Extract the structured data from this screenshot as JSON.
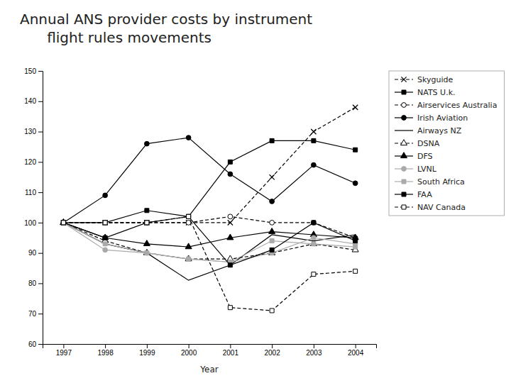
{
  "chart_data": {
    "type": "line",
    "title": [
      "Annual ANS provider costs by instrument",
      "      flight rules movements"
    ],
    "xlabel": "Year",
    "x": [
      1997,
      1998,
      1999,
      2000,
      2001,
      2002,
      2003,
      2004
    ],
    "xlim": [
      1996.5,
      2004.5
    ],
    "xticks": [
      1997,
      1998,
      1999,
      2000,
      2001,
      2002,
      2003,
      2004
    ],
    "ylim": [
      60,
      150
    ],
    "yticks": [
      60,
      70,
      80,
      90,
      100,
      110,
      120,
      130,
      140,
      150
    ],
    "grid": false,
    "legend": "right",
    "series": [
      {
        "name": "Skyguide",
        "color": "#000000",
        "line_style": "dashed",
        "marker": "x",
        "values": [
          100,
          100,
          100,
          100,
          100,
          115,
          130,
          138
        ]
      },
      {
        "name": "NATS U.k.",
        "color": "#000000",
        "line_style": "solid",
        "marker": "square",
        "values": [
          100,
          100,
          104,
          102,
          120,
          127,
          127,
          124
        ]
      },
      {
        "name": "Airservices Australia",
        "color": "#000000",
        "line_style": "dashed",
        "marker": "circle-open",
        "values": [
          100,
          100,
          100,
          100,
          102,
          100,
          100,
          95
        ]
      },
      {
        "name": "Irish Aviation",
        "color": "#000000",
        "line_style": "solid",
        "marker": "circle",
        "values": [
          100,
          109,
          126,
          128,
          116,
          107,
          119,
          113
        ]
      },
      {
        "name": "Airways NZ",
        "color": "#000000",
        "line_style": "solid",
        "marker": "none",
        "values": [
          100,
          93,
          90,
          81,
          86,
          96,
          94,
          96
        ]
      },
      {
        "name": "DSNA",
        "color": "#000000",
        "line_style": "dashed",
        "marker": "triangle-open",
        "values": [
          100,
          94,
          90,
          88,
          88,
          90,
          93,
          91
        ]
      },
      {
        "name": "DFS",
        "color": "#000000",
        "line_style": "solid",
        "marker": "triangle",
        "values": [
          100,
          95,
          93,
          92,
          95,
          97,
          96,
          95
        ]
      },
      {
        "name": "LVNL",
        "color": "#aaaaaa",
        "line_style": "solid",
        "marker": "circle",
        "values": [
          100,
          91,
          90,
          88,
          87,
          90,
          95,
          93
        ]
      },
      {
        "name": "South Africa",
        "color": "#aaaaaa",
        "line_style": "solid",
        "marker": "square",
        "values": [
          100,
          93,
          90,
          88,
          87,
          94,
          93,
          92
        ]
      },
      {
        "name": "FAA",
        "color": "#000000",
        "line_style": "solid",
        "marker": "square",
        "values": [
          100,
          95,
          100,
          102,
          86,
          91,
          100,
          94
        ]
      },
      {
        "name": "NAV Canada",
        "color": "#000000",
        "line_style": "dashed",
        "marker": "square-open",
        "values": [
          100,
          100,
          100,
          102,
          72,
          71,
          83,
          84
        ]
      }
    ]
  }
}
